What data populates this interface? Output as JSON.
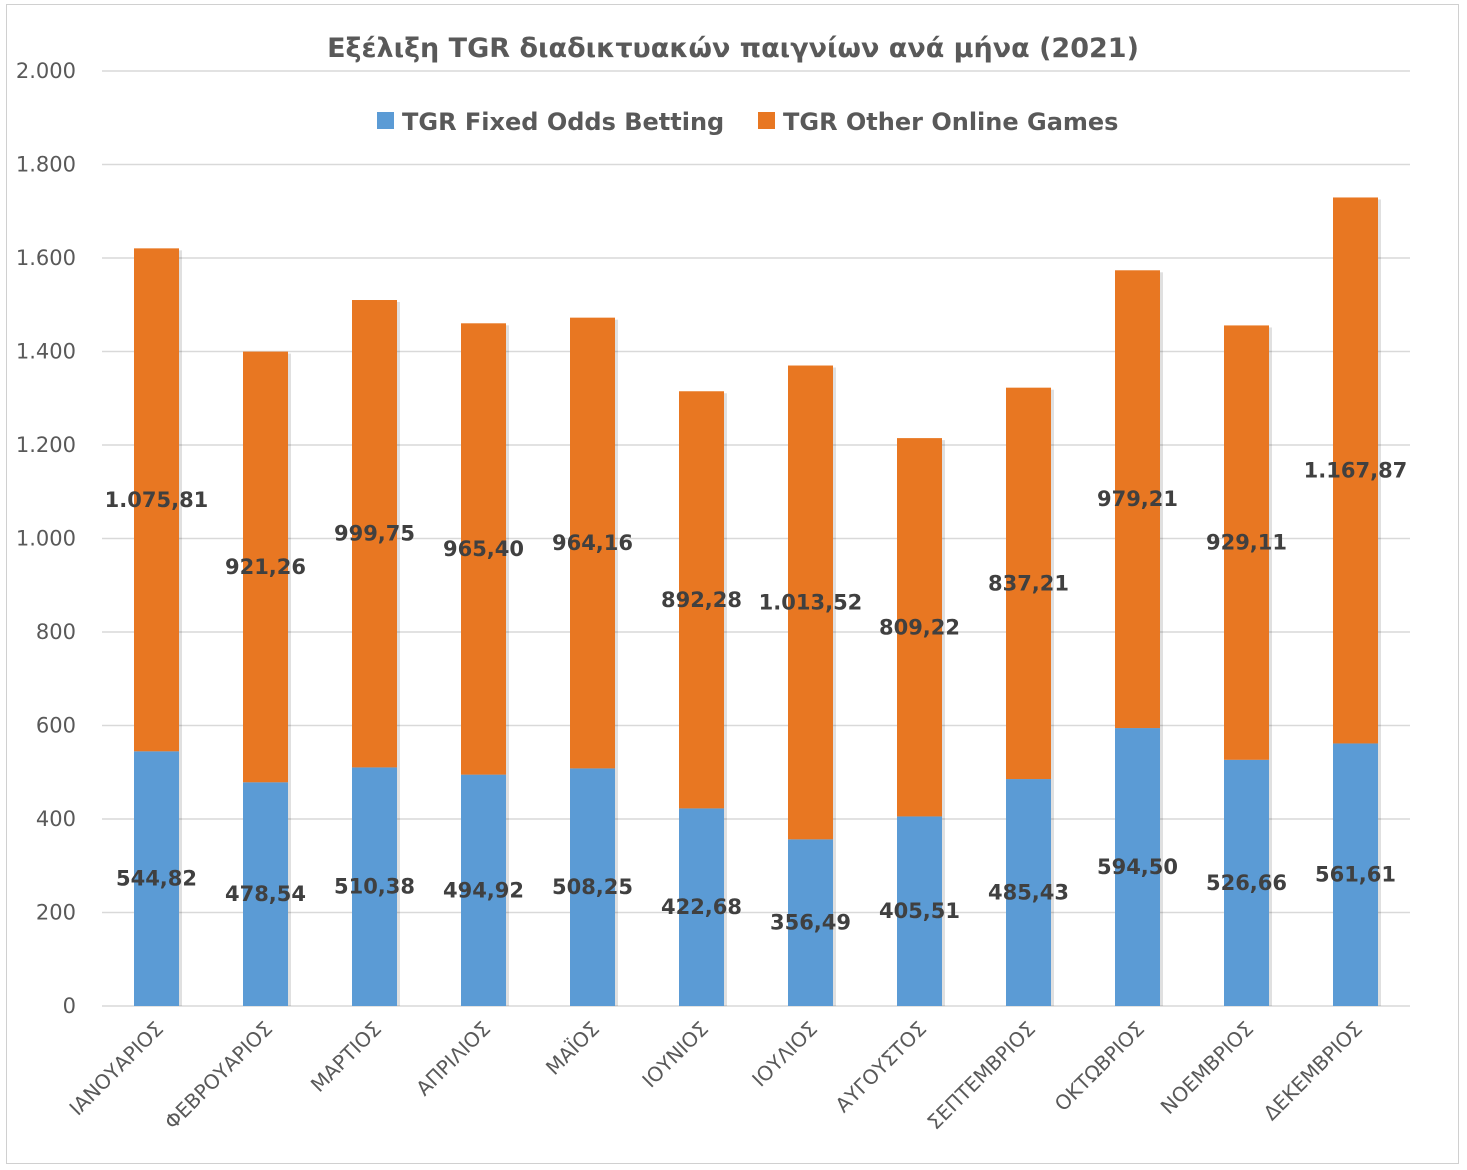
{
  "chart_data": {
    "type": "bar",
    "stacked": true,
    "title": "Εξέλιξη TGR διαδικτυακών παιγνίων ανά μήνα (2021)",
    "categories": [
      "ΙΑΝΟΥΑΡΙΟΣ",
      "ΦΕΒΡΟΥΑΡΙΟΣ",
      "ΜΑΡΤΙΟΣ",
      "ΑΠΡΙΛΙΟΣ",
      "ΜΑΪΟΣ",
      "ΙΟΥΝΙΟΣ",
      "ΙΟΥΛΙΟΣ",
      "ΑΥΓΟΥΣΤΟΣ",
      "ΣΕΠΤΕΜΒΡΙΟΣ",
      "ΟΚΤΩΒΡΙΟΣ",
      "ΝΟΕΜΒΡΙΟΣ",
      "ΔΕΚΕΜΒΡΙΟΣ"
    ],
    "series": [
      {
        "name": "TGR Fixed Odds Betting",
        "color": "#5b9bd5",
        "values": [
          544.82,
          478.54,
          510.38,
          494.92,
          508.25,
          422.68,
          356.49,
          405.51,
          485.43,
          594.5,
          526.66,
          561.61
        ],
        "labels": [
          "544,82",
          "478,54",
          "510,38",
          "494,92",
          "508,25",
          "422,68",
          "356,49",
          "405,51",
          "485,43",
          "594,50",
          "526,66",
          "561,61"
        ]
      },
      {
        "name": "TGR Other Online Games",
        "color": "#e87722",
        "values": [
          1075.81,
          921.26,
          999.75,
          965.4,
          964.16,
          892.28,
          1013.52,
          809.22,
          837.21,
          979.21,
          929.11,
          1167.87
        ],
        "labels": [
          "1.075,81",
          "921,26",
          "999,75",
          "965,40",
          "964,16",
          "892,28",
          "1.013,52",
          "809,22",
          "837,21",
          "979,21",
          "929,11",
          "1.167,87"
        ]
      }
    ],
    "ylim": [
      0,
      2000
    ],
    "yticks": [
      0,
      200,
      400,
      600,
      800,
      1000,
      1200,
      1400,
      1600,
      1800,
      2000
    ],
    "ytick_labels": [
      "0",
      "200",
      "400",
      "600",
      "800",
      "1.000",
      "1.200",
      "1.400",
      "1.600",
      "1.800",
      "2.000"
    ],
    "grid": true,
    "legend_position": "top-center"
  }
}
